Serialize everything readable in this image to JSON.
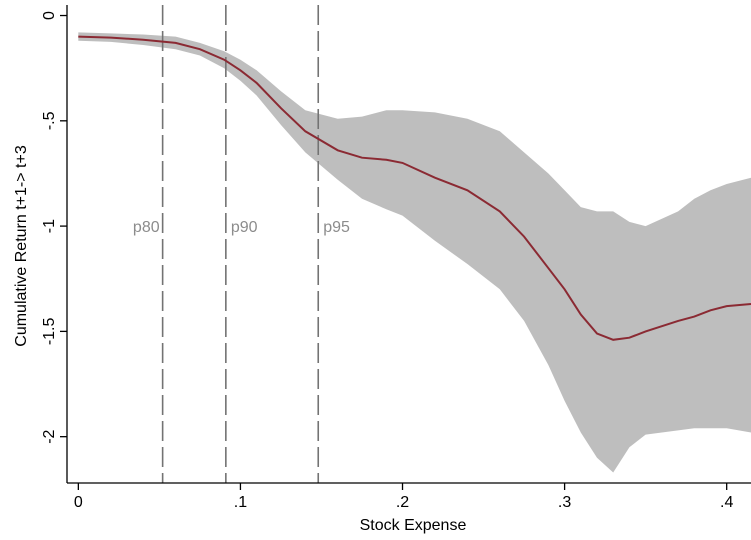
{
  "chart_data": {
    "type": "line",
    "xlabel": "Stock Expense",
    "ylabel": "Cumulative Return t+1-> t+3",
    "xlim": [
      -0.007,
      0.415
    ],
    "ylim": [
      -2.22,
      0.05
    ],
    "grid": false,
    "x_ticks": [
      {
        "value": 0,
        "label": "0"
      },
      {
        "value": 0.1,
        "label": ".1"
      },
      {
        "value": 0.2,
        "label": ".2"
      },
      {
        "value": 0.3,
        "label": ".3"
      },
      {
        "value": 0.4,
        "label": ".4"
      }
    ],
    "y_ticks": [
      {
        "value": 0,
        "label": "0"
      },
      {
        "value": -0.5,
        "label": "-.5"
      },
      {
        "value": -1,
        "label": "-1"
      },
      {
        "value": -1.5,
        "label": "-1.5"
      },
      {
        "value": -2,
        "label": "-2"
      }
    ],
    "colors": {
      "line": "#8b2a33",
      "band": "#bebebe",
      "reference": "#737373",
      "reference_label": "#8c8c8c",
      "axis": "#000000"
    },
    "reference_lines": [
      {
        "x": 0.052,
        "label": "p80",
        "label_y": -1.0,
        "label_side": "left"
      },
      {
        "x": 0.091,
        "label": "p90",
        "label_y": -1.0,
        "label_side": "right"
      },
      {
        "x": 0.148,
        "label": "p95",
        "label_y": -1.0,
        "label_side": "right"
      }
    ],
    "series": [
      {
        "x": [
          0,
          0.02,
          0.04,
          0.06,
          0.075,
          0.09,
          0.1,
          0.11,
          0.125,
          0.14,
          0.16,
          0.175,
          0.19,
          0.2,
          0.22,
          0.24,
          0.26,
          0.275,
          0.29,
          0.3,
          0.31,
          0.32,
          0.33,
          0.34,
          0.35,
          0.37,
          0.38,
          0.39,
          0.4,
          0.415
        ],
        "values": [
          -0.1,
          -0.105,
          -0.115,
          -0.13,
          -0.16,
          -0.21,
          -0.26,
          -0.32,
          -0.44,
          -0.55,
          -0.64,
          -0.675,
          -0.685,
          -0.7,
          -0.77,
          -0.83,
          -0.93,
          -1.05,
          -1.2,
          -1.3,
          -1.42,
          -1.51,
          -1.54,
          -1.53,
          -1.5,
          -1.45,
          -1.43,
          -1.4,
          -1.38,
          -1.37
        ]
      }
    ],
    "band": {
      "x": [
        0,
        0.02,
        0.04,
        0.06,
        0.075,
        0.09,
        0.1,
        0.11,
        0.125,
        0.14,
        0.16,
        0.175,
        0.19,
        0.2,
        0.22,
        0.24,
        0.26,
        0.275,
        0.29,
        0.3,
        0.31,
        0.32,
        0.33,
        0.34,
        0.35,
        0.37,
        0.38,
        0.39,
        0.4,
        0.415
      ],
      "upper": [
        -0.08,
        -0.085,
        -0.09,
        -0.1,
        -0.13,
        -0.17,
        -0.21,
        -0.26,
        -0.36,
        -0.45,
        -0.49,
        -0.48,
        -0.45,
        -0.45,
        -0.46,
        -0.49,
        -0.55,
        -0.65,
        -0.75,
        -0.83,
        -0.91,
        -0.93,
        -0.93,
        -0.98,
        -1.0,
        -0.93,
        -0.87,
        -0.83,
        -0.8,
        -0.77
      ],
      "lower": [
        -0.12,
        -0.125,
        -0.14,
        -0.16,
        -0.19,
        -0.25,
        -0.31,
        -0.38,
        -0.52,
        -0.65,
        -0.78,
        -0.87,
        -0.92,
        -0.95,
        -1.07,
        -1.18,
        -1.3,
        -1.45,
        -1.66,
        -1.83,
        -1.98,
        -2.1,
        -2.17,
        -2.05,
        -1.99,
        -1.97,
        -1.96,
        -1.96,
        -1.96,
        -1.98
      ]
    }
  }
}
